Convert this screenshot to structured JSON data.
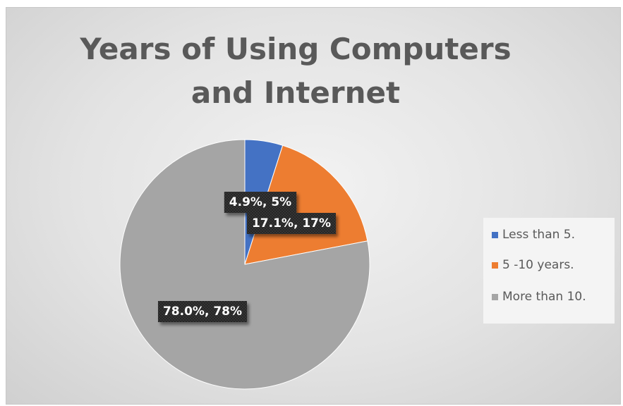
{
  "chart_data": {
    "type": "pie",
    "title": "Years of Using Computers and Internet",
    "categories": [
      "Less than 5.",
      "5 -10 years.",
      "More than 10."
    ],
    "values": [
      4.9,
      17.1,
      78.0
    ],
    "labels": [
      "4.9%, 5%",
      "17.1%, 17%",
      "78.0%, 78%"
    ],
    "colors": [
      "#4472c4",
      "#ed7d31",
      "#a5a5a5"
    ],
    "legend_position": "right"
  }
}
